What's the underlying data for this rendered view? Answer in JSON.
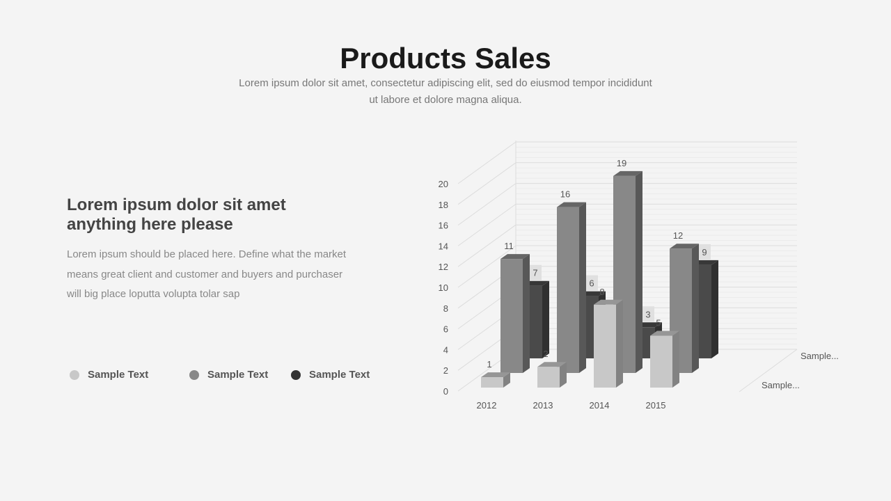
{
  "header": {
    "title": "Products Sales",
    "subtitle": "Lorem ipsum dolor sit amet, consectetur adipiscing elit, sed do eiusmod tempor incididunt ut labore et dolore magna aliqua."
  },
  "left": {
    "heading": "Lorem ipsum dolor sit amet anything here please",
    "body": "Lorem ipsum should be placed here. Define what the market means great client and customer and buyers and purchaser will big place loputta volupta tolar sap"
  },
  "legend": [
    {
      "label": "Sample Text",
      "color": "#c8c8c8"
    },
    {
      "label": "Sample Text",
      "color": "#888888"
    },
    {
      "label": "Sample Text",
      "color": "#333333"
    }
  ],
  "chart_data": {
    "type": "bar",
    "style": "3d-clustered-depth",
    "categories": [
      "2012",
      "2013",
      "2014",
      "2015"
    ],
    "y_ticks": [
      "0",
      "2",
      "4",
      "6",
      "8",
      "10",
      "12",
      "14",
      "16",
      "18",
      "20"
    ],
    "ylim": [
      0,
      20
    ],
    "depth_labels": [
      "Sample...",
      "Sample..."
    ],
    "series": [
      {
        "name": "Sample Text",
        "color": "#c8c8c8",
        "values": [
          1,
          2,
          8,
          5
        ]
      },
      {
        "name": "Sample Text",
        "color": "#888888",
        "values": [
          11,
          16,
          19,
          12
        ]
      },
      {
        "name": "Sample Text",
        "color": "#4a4a4a",
        "values": [
          7,
          6,
          3,
          9
        ]
      }
    ]
  }
}
